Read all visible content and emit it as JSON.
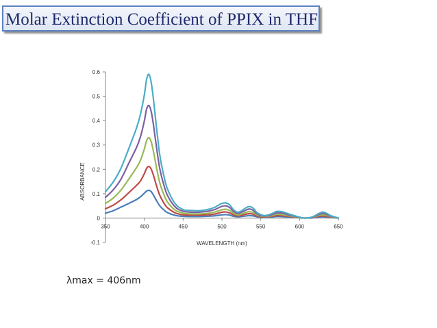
{
  "slide": {
    "title": "Molar Extinction Coefficient of PPIX in THF",
    "caption": "λmax = 406nm"
  },
  "chart_data": {
    "type": "line",
    "title": "",
    "xlabel": "WAVELENGTH (nm)",
    "ylabel": "ABSORBANCE",
    "xlim": [
      350,
      650
    ],
    "ylim": [
      -0.1,
      0.6
    ],
    "x_ticks": [
      "350",
      "400",
      "450",
      "500",
      "550",
      "600",
      "650"
    ],
    "y_ticks": [
      "0.6",
      "0.5",
      "0.4",
      "0.3",
      "0.2",
      "0.1",
      "0",
      "-0.1"
    ],
    "grid": false,
    "legend": "none",
    "x": [
      350,
      360,
      370,
      380,
      390,
      395,
      400,
      403,
      406,
      409,
      412,
      416,
      420,
      425,
      430,
      440,
      450,
      460,
      470,
      480,
      490,
      495,
      500,
      505,
      510,
      515,
      520,
      525,
      530,
      535,
      540,
      545,
      550,
      555,
      560,
      565,
      570,
      575,
      580,
      585,
      590,
      595,
      600,
      605,
      610,
      615,
      620,
      625,
      630,
      635,
      640,
      645,
      650
    ],
    "series": [
      {
        "color": "#4a7ebb",
        "values": [
          0.02,
          0.03,
          0.045,
          0.06,
          0.076,
          0.087,
          0.102,
          0.111,
          0.114,
          0.108,
          0.093,
          0.07,
          0.05,
          0.034,
          0.022,
          0.011,
          0.007,
          0.006,
          0.006,
          0.007,
          0.009,
          0.011,
          0.013,
          0.014,
          0.012,
          0.007,
          0.005,
          0.006,
          0.008,
          0.01,
          0.009,
          0.005,
          0.003,
          0.002,
          0.003,
          0.004,
          0.006,
          0.006,
          0.005,
          0.004,
          0.003,
          0.002,
          0.001,
          0.0,
          0.0,
          0.0,
          0.002,
          0.004,
          0.005,
          0.004,
          0.002,
          0.001,
          0.0
        ]
      },
      {
        "color": "#be4b48",
        "values": [
          0.038,
          0.053,
          0.075,
          0.104,
          0.134,
          0.152,
          0.182,
          0.204,
          0.212,
          0.2,
          0.173,
          0.13,
          0.093,
          0.063,
          0.042,
          0.021,
          0.013,
          0.012,
          0.012,
          0.013,
          0.016,
          0.02,
          0.024,
          0.025,
          0.021,
          0.013,
          0.009,
          0.011,
          0.015,
          0.018,
          0.016,
          0.009,
          0.005,
          0.004,
          0.005,
          0.007,
          0.01,
          0.01,
          0.009,
          0.007,
          0.005,
          0.003,
          0.002,
          0.0,
          0.0,
          0.001,
          0.004,
          0.007,
          0.009,
          0.007,
          0.004,
          0.002,
          0.0
        ]
      },
      {
        "color": "#98b954",
        "values": [
          0.06,
          0.082,
          0.115,
          0.16,
          0.207,
          0.237,
          0.283,
          0.318,
          0.33,
          0.312,
          0.27,
          0.203,
          0.144,
          0.098,
          0.065,
          0.032,
          0.02,
          0.017,
          0.017,
          0.019,
          0.024,
          0.029,
          0.034,
          0.036,
          0.031,
          0.019,
          0.013,
          0.016,
          0.022,
          0.026,
          0.023,
          0.013,
          0.008,
          0.006,
          0.007,
          0.011,
          0.015,
          0.015,
          0.013,
          0.01,
          0.007,
          0.004,
          0.002,
          0.0,
          0.0,
          0.002,
          0.006,
          0.011,
          0.013,
          0.011,
          0.006,
          0.003,
          0.0
        ]
      },
      {
        "color": "#7d60a0",
        "values": [
          0.085,
          0.116,
          0.16,
          0.225,
          0.29,
          0.333,
          0.398,
          0.448,
          0.462,
          0.436,
          0.378,
          0.284,
          0.202,
          0.138,
          0.092,
          0.045,
          0.028,
          0.024,
          0.024,
          0.027,
          0.034,
          0.041,
          0.048,
          0.05,
          0.043,
          0.027,
          0.019,
          0.023,
          0.031,
          0.037,
          0.032,
          0.018,
          0.011,
          0.008,
          0.01,
          0.015,
          0.021,
          0.021,
          0.019,
          0.014,
          0.01,
          0.006,
          0.003,
          0.0,
          0.0,
          0.002,
          0.008,
          0.015,
          0.019,
          0.015,
          0.008,
          0.004,
          0.0
        ]
      },
      {
        "color": "#4bacc6",
        "values": [
          0.108,
          0.148,
          0.205,
          0.285,
          0.37,
          0.425,
          0.505,
          0.57,
          0.59,
          0.555,
          0.482,
          0.363,
          0.258,
          0.176,
          0.118,
          0.058,
          0.035,
          0.031,
          0.03,
          0.034,
          0.043,
          0.052,
          0.06,
          0.062,
          0.054,
          0.034,
          0.024,
          0.029,
          0.04,
          0.047,
          0.041,
          0.023,
          0.014,
          0.01,
          0.013,
          0.019,
          0.027,
          0.027,
          0.024,
          0.018,
          0.013,
          0.008,
          0.004,
          0.0,
          0.0,
          0.003,
          0.01,
          0.019,
          0.025,
          0.019,
          0.01,
          0.005,
          0.0
        ]
      }
    ]
  }
}
